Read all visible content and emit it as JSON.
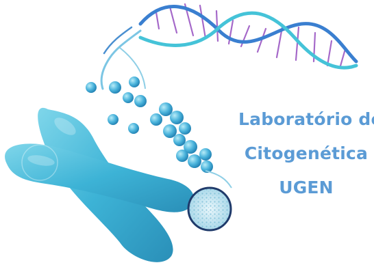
{
  "logo": {
    "title_lines": [
      "Laboratório de",
      "Citogenética",
      "UGEN"
    ],
    "colors": {
      "text": "#5b9bd5",
      "chromosome": "#3db3d6",
      "dna_strand_blue": "#3a7fd0",
      "dna_strand_cyan": "#45c3d8",
      "dna_rungs_purple": "#a569c9",
      "nucleosome": "#47a9d8",
      "circle_outline": "#1f3a6a"
    },
    "icons": [
      "chromosome-illustration",
      "dna-double-helix",
      "nucleosome-beads",
      "chromatin-magnifier-circle"
    ]
  }
}
